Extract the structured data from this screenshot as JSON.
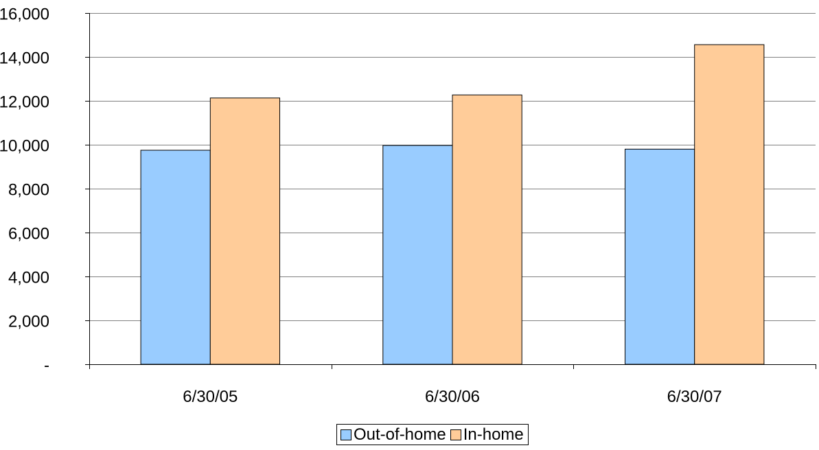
{
  "chart_data": {
    "type": "bar",
    "categories": [
      "6/30/05",
      "6/30/06",
      "6/30/07"
    ],
    "series": [
      {
        "name": "Out-of-home",
        "color": "#99ccff",
        "values": [
          9750,
          9970,
          9800
        ]
      },
      {
        "name": "In-home",
        "color": "#ffcc99",
        "values": [
          12130,
          12270,
          14560
        ]
      }
    ],
    "yticks": [
      0,
      2000,
      4000,
      6000,
      8000,
      10000,
      12000,
      14000,
      16000
    ],
    "ytick_labels": [
      "-",
      "2,000",
      "4,000",
      "6,000",
      "8,000",
      "10,000",
      "12,000",
      "14,000",
      "16,000"
    ],
    "ylim": [
      0,
      16000
    ],
    "title": "",
    "xlabel": "",
    "ylabel": "",
    "grid": true,
    "legend_position": "bottom-center"
  }
}
